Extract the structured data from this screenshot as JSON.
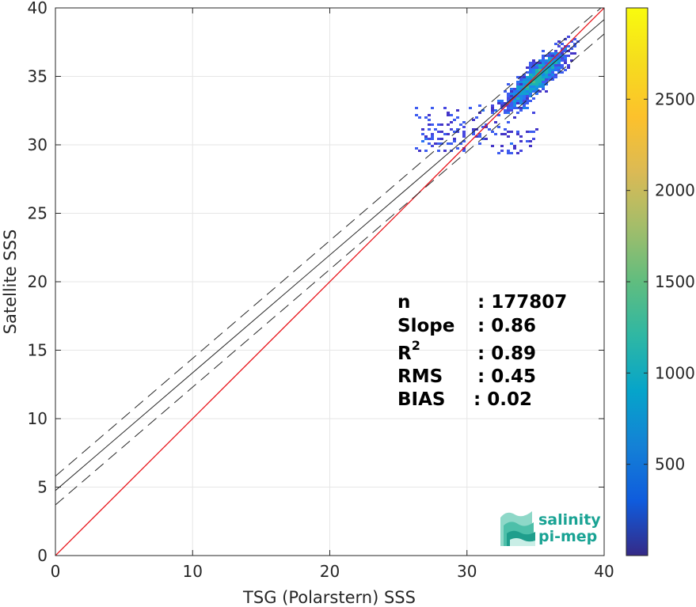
{
  "chart_data": {
    "type": "heatmap",
    "title": "",
    "xlabel": "TSG (Polarstern) SSS",
    "ylabel": "Satellite SSS",
    "xlim": [
      0,
      40
    ],
    "ylim": [
      0,
      40
    ],
    "x_ticks": [
      0,
      10,
      20,
      30,
      40
    ],
    "y_ticks": [
      0,
      5,
      10,
      15,
      20,
      25,
      30,
      35,
      40
    ],
    "grid": true,
    "identity_line": {
      "color": "#e8141a",
      "slope": 1,
      "intercept": 0
    },
    "fit_line": {
      "slope": 0.86,
      "intercept": 4.75,
      "band_offset": 1.05
    },
    "colorbar": {
      "colormap": "parula",
      "range": [
        0,
        3000
      ],
      "ticks": [
        500,
        1000,
        1500,
        2000,
        2500
      ]
    },
    "density_center": [
      35,
      35
    ],
    "stats": [
      {
        "label": "n",
        "value": ": 177807"
      },
      {
        "label": "Slope",
        "value": ": 0.86"
      },
      {
        "label": "R",
        "sup": "2",
        "value": ": 0.89"
      },
      {
        "label": "RMS",
        "value": ": 0.45"
      },
      {
        "label": "BIAS",
        "value": ": 0.02"
      }
    ]
  },
  "logo": {
    "line1": "salinity",
    "line2": "pi-mep"
  }
}
